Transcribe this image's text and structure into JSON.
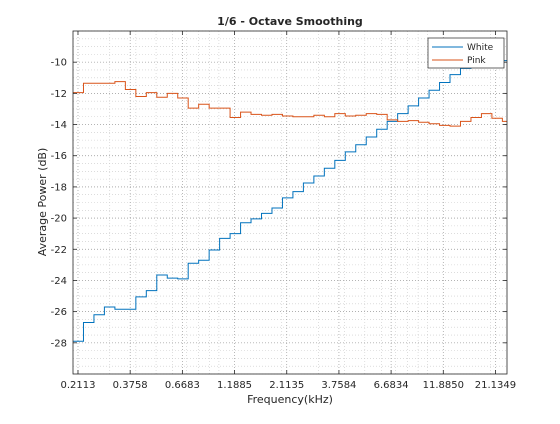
{
  "chart_data": {
    "type": "line",
    "title": "1/6 - Octave Smoothing",
    "xlabel": "Frequency(kHz)",
    "ylabel": "Average Power (dB)",
    "x_scale": "log",
    "xlim": [
      0.2,
      24
    ],
    "ylim": [
      -30,
      -8
    ],
    "xticks": [
      0.2113,
      0.3758,
      0.6683,
      1.1885,
      2.1135,
      3.7584,
      6.6834,
      11.885,
      21.1349
    ],
    "xtick_labels": [
      "0.2113",
      "0.3758",
      "0.6683",
      "1.1885",
      "2.1135",
      "3.7584",
      "6.6834",
      "11.8850",
      "21.1349"
    ],
    "yticks": [
      -28,
      -26,
      -24,
      -22,
      -20,
      -18,
      -16,
      -14,
      -12,
      -10
    ],
    "ytick_labels": [
      "-28",
      "-26",
      "-24",
      "-22",
      "-20",
      "-18",
      "-16",
      "-14",
      "-12",
      "-10"
    ],
    "grid": true,
    "minor_grid": true,
    "legend_position": "top-right",
    "step_style": "stairs",
    "x_edges": [
      0.2,
      0.2245,
      0.252,
      0.2828,
      0.3175,
      0.3564,
      0.4,
      0.449,
      0.504,
      0.5657,
      0.635,
      0.7127,
      0.8,
      0.898,
      1.008,
      1.1314,
      1.27,
      1.4254,
      1.6,
      1.796,
      2.016,
      2.2627,
      2.54,
      2.851,
      3.2,
      3.592,
      4.032,
      4.525,
      5.08,
      5.702,
      6.4,
      7.184,
      8.064,
      9.051,
      10.159,
      11.404,
      12.8,
      14.367,
      16.127,
      18.102,
      20.319,
      22.807,
      24
    ],
    "series": [
      {
        "name": "White",
        "color": "#0072BD",
        "values": [
          -27.9,
          -26.7,
          -26.2,
          -25.7,
          -25.85,
          -25.85,
          -25.05,
          -24.65,
          -23.65,
          -23.85,
          -23.9,
          -22.9,
          -22.7,
          -22.05,
          -21.3,
          -21.0,
          -20.3,
          -20.05,
          -19.7,
          -19.35,
          -18.7,
          -18.3,
          -17.75,
          -17.3,
          -16.8,
          -16.3,
          -15.75,
          -15.3,
          -14.8,
          -14.3,
          -13.8,
          -13.3,
          -12.8,
          -12.3,
          -11.8,
          -11.3,
          -10.8,
          -10.4,
          -10.05,
          -9.9,
          -9.9,
          -9.9
        ]
      },
      {
        "name": "Pink",
        "color": "#D95319",
        "values": [
          -11.95,
          -11.35,
          -11.35,
          -11.35,
          -11.25,
          -11.75,
          -12.2,
          -11.95,
          -12.25,
          -12.0,
          -12.3,
          -12.95,
          -12.7,
          -12.95,
          -12.95,
          -13.55,
          -13.2,
          -13.35,
          -13.4,
          -13.35,
          -13.45,
          -13.5,
          -13.5,
          -13.4,
          -13.5,
          -13.3,
          -13.45,
          -13.4,
          -13.3,
          -13.35,
          -13.7,
          -13.8,
          -13.75,
          -13.85,
          -13.95,
          -14.05,
          -14.1,
          -13.8,
          -13.55,
          -13.3,
          -13.6,
          -13.8
        ]
      }
    ]
  }
}
